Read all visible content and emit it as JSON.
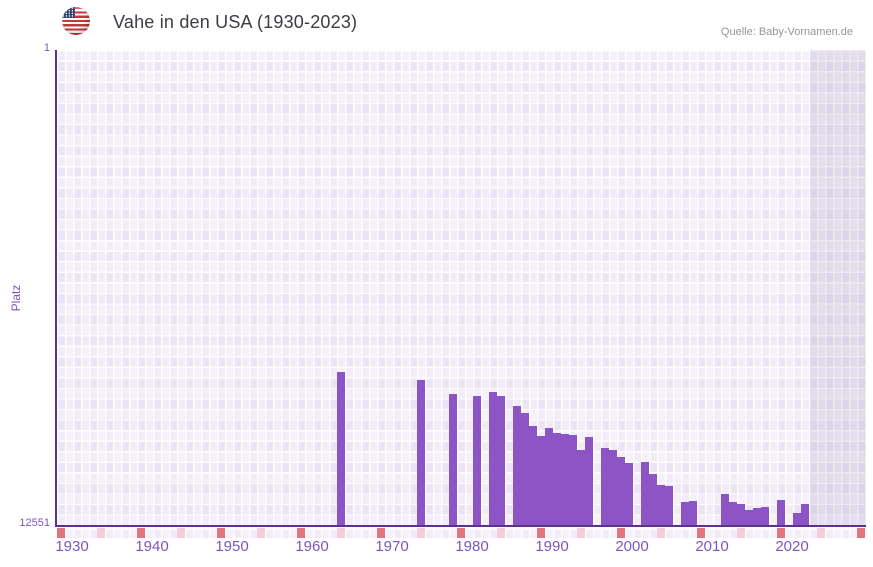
{
  "header": {
    "title": "Vahe in den USA (1930-2023)",
    "flag_icon": "us-flag-icon",
    "source": "Quelle: Baby-Vornamen.de"
  },
  "y_axis": {
    "label": "Platz",
    "top_tick": "1",
    "bottom_tick": "12551"
  },
  "x_axis": {
    "tick_labels": [
      "1930",
      "1940",
      "1950",
      "1960",
      "1970",
      "1980",
      "1990",
      "2000",
      "2010",
      "2020"
    ]
  },
  "colors": {
    "bar": "#8c54c4",
    "axis": "#5b3091",
    "decade_tick": "#e0757e",
    "half_decade_tick": "#f3ced9",
    "x_label": "#7d55bd",
    "title": "#3d3d44",
    "source": "#95959d",
    "grid_cell": "#ebe4f5",
    "future_band": "rgba(143,131,166,0.16)"
  },
  "chart_data": {
    "type": "bar",
    "title": "Vahe in den USA (1930-2023)",
    "xlabel": "",
    "ylabel": "Platz",
    "ylim": [
      1,
      12551
    ],
    "y_inverted": true,
    "x_years_range": [
      1930,
      2023
    ],
    "grid": true,
    "decade_ticks": [
      1930,
      1940,
      1950,
      1960,
      1970,
      1980,
      1990,
      2000,
      2010,
      2020,
      2030
    ],
    "half_decade_ticks": [
      1935,
      1945,
      1955,
      1965,
      1975,
      1985,
      1995,
      2005,
      2015,
      2025
    ],
    "no_data_band_start_year": 2024,
    "points": [
      {
        "year": 1965,
        "rank": 8510
      },
      {
        "year": 1975,
        "rank": 8720
      },
      {
        "year": 1979,
        "rank": 9100
      },
      {
        "year": 1982,
        "rank": 9140
      },
      {
        "year": 1984,
        "rank": 9050
      },
      {
        "year": 1985,
        "rank": 9140
      },
      {
        "year": 1987,
        "rank": 9420
      },
      {
        "year": 1988,
        "rank": 9590
      },
      {
        "year": 1989,
        "rank": 9930
      },
      {
        "year": 1990,
        "rank": 10200
      },
      {
        "year": 1991,
        "rank": 9990
      },
      {
        "year": 1992,
        "rank": 10120
      },
      {
        "year": 1993,
        "rank": 10150
      },
      {
        "year": 1994,
        "rank": 10170
      },
      {
        "year": 1995,
        "rank": 10560
      },
      {
        "year": 1996,
        "rank": 10230
      },
      {
        "year": 1998,
        "rank": 10520
      },
      {
        "year": 1999,
        "rank": 10580
      },
      {
        "year": 2000,
        "rank": 10750
      },
      {
        "year": 2001,
        "rank": 10910
      },
      {
        "year": 2003,
        "rank": 10890
      },
      {
        "year": 2004,
        "rank": 11200
      },
      {
        "year": 2005,
        "rank": 11490
      },
      {
        "year": 2006,
        "rank": 11520
      },
      {
        "year": 2008,
        "rank": 11940
      },
      {
        "year": 2009,
        "rank": 11920
      },
      {
        "year": 2013,
        "rank": 11730
      },
      {
        "year": 2014,
        "rank": 11940
      },
      {
        "year": 2015,
        "rank": 12000
      },
      {
        "year": 2016,
        "rank": 12150
      },
      {
        "year": 2017,
        "rank": 12100
      },
      {
        "year": 2018,
        "rank": 12080
      },
      {
        "year": 2020,
        "rank": 11890
      },
      {
        "year": 2022,
        "rank": 12230
      },
      {
        "year": 2023,
        "rank": 12000
      }
    ]
  }
}
